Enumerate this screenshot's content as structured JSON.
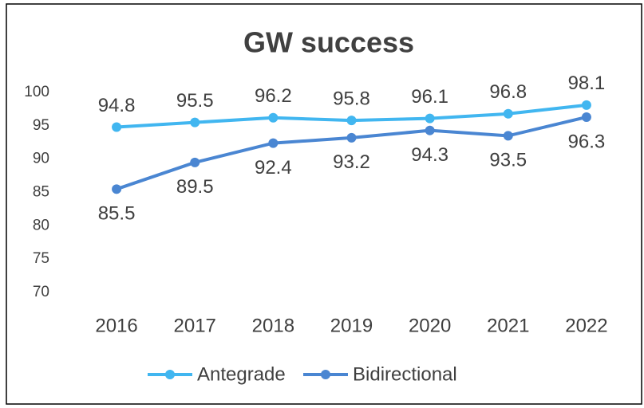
{
  "chart_data": {
    "type": "line",
    "title": "GW success",
    "categories": [
      "2016",
      "2017",
      "2018",
      "2019",
      "2020",
      "2021",
      "2022"
    ],
    "series": [
      {
        "name": "Antegrade",
        "color": "#41b6f0",
        "values": [
          94.8,
          95.5,
          96.2,
          95.8,
          96.1,
          96.8,
          98.1
        ]
      },
      {
        "name": "Bidirectional",
        "color": "#4a86d2",
        "values": [
          85.5,
          89.5,
          92.4,
          93.2,
          94.3,
          93.5,
          96.3
        ]
      }
    ],
    "ylim": [
      70,
      100
    ],
    "yticks": [
      70,
      75,
      80,
      85,
      90,
      95,
      100
    ],
    "grid": false,
    "legend": "bottom"
  }
}
